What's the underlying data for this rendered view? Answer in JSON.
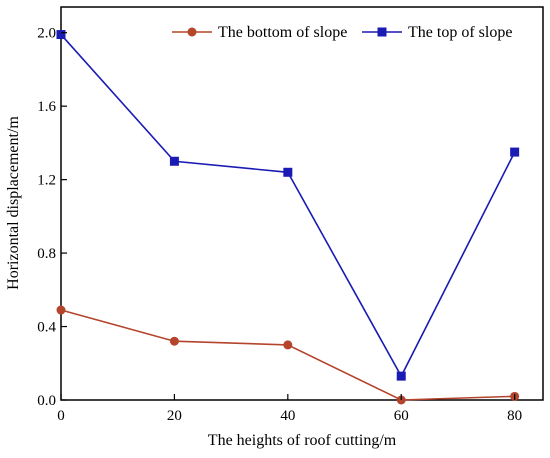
{
  "chart_data": {
    "type": "line",
    "x": [
      0,
      20,
      40,
      60,
      80
    ],
    "xlabel": "The heights of roof cutting/m",
    "ylabel": "Horizontal displacement/m",
    "xlim": [
      0,
      85
    ],
    "ylim": [
      0,
      2.14
    ],
    "xticks": [
      0,
      20,
      40,
      60,
      80
    ],
    "yticks": [
      0.0,
      0.4,
      0.8,
      1.2,
      1.6,
      2.0
    ],
    "xtick_labels": [
      "0",
      "20",
      "40",
      "60",
      "80"
    ],
    "ytick_labels": [
      "0.0",
      "0.4",
      "0.8",
      "1.2",
      "1.6",
      "2.0"
    ],
    "grid": false,
    "legend_position": "top-right",
    "series": [
      {
        "name": "The bottom of slope",
        "values": [
          0.49,
          0.32,
          0.3,
          0.0,
          0.02
        ],
        "color": "#b5442c",
        "marker": "circle"
      },
      {
        "name": "The top of slope",
        "values": [
          1.99,
          1.3,
          1.24,
          0.13,
          1.35
        ],
        "color": "#1a1ab4",
        "marker": "square"
      }
    ]
  }
}
